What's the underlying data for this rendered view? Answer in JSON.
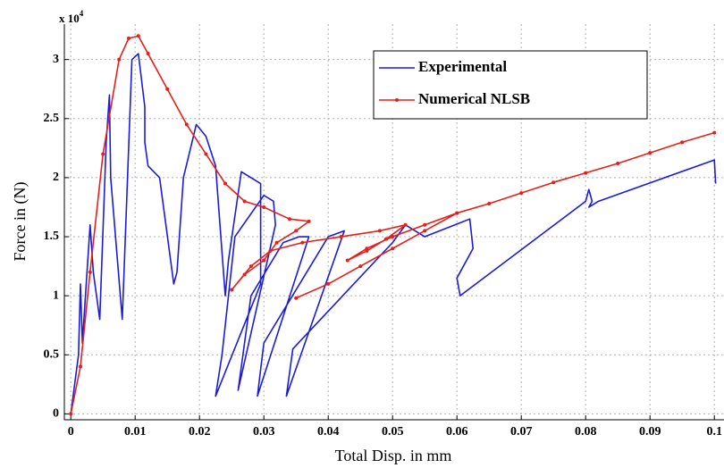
{
  "chart_data": {
    "type": "line",
    "xlabel": "Total Disp. in mm",
    "ylabel": "Force in (N)",
    "y_multiplier": "x 10",
    "y_multiplier_exponent": "4",
    "xlim": [
      -0.001,
      0.1015
    ],
    "ylim": [
      -0.05,
      3.3
    ],
    "xticks": [
      0,
      0.01,
      0.02,
      0.03,
      0.04,
      0.05,
      0.06,
      0.07,
      0.08,
      0.09,
      0.1
    ],
    "yticks": [
      0,
      0.5,
      1,
      1.5,
      2,
      2.5,
      3
    ],
    "grid": true,
    "legend": "upper right",
    "series": [
      {
        "name": "Experimental",
        "color": "#1c1cd8",
        "marker": false,
        "x": [
          0,
          0.0012,
          0.0015,
          0.0018,
          0.003,
          0.0035,
          0.0045,
          0.0055,
          0.006,
          0.0062,
          0.008,
          0.0095,
          0.0105,
          0.0115,
          0.0115,
          0.012,
          0.0138,
          0.016,
          0.0165,
          0.0175,
          0.0195,
          0.021,
          0.0225,
          0.024,
          0.0245,
          0.0265,
          0.0295,
          0.0295,
          0.0225,
          0.0235,
          0.0255,
          0.03,
          0.0315,
          0.0318,
          0.026,
          0.027,
          0.028,
          0.033,
          0.0355,
          0.037,
          0.029,
          0.03,
          0.04,
          0.0425,
          0.0335,
          0.0345,
          0.05,
          0.052,
          0.055,
          0.062,
          0.0625,
          0.06,
          0.0605,
          0.08,
          0.0805,
          0.081,
          0.0805,
          0.082,
          0.1,
          0.1002
        ],
        "values": [
          0,
          0.5,
          1.1,
          0.6,
          1.6,
          1.2,
          0.8,
          2.3,
          2.7,
          2.0,
          0.8,
          3.0,
          3.05,
          2.6,
          2.3,
          2.1,
          2.0,
          1.1,
          1.2,
          2.0,
          2.45,
          2.35,
          2.1,
          1.0,
          1.3,
          2.05,
          1.95,
          1.1,
          0.15,
          0.5,
          1.5,
          1.85,
          1.8,
          1.6,
          0.2,
          0.6,
          1.0,
          1.45,
          1.5,
          1.5,
          0.15,
          0.6,
          1.5,
          1.55,
          0.15,
          0.55,
          1.45,
          1.6,
          1.5,
          1.65,
          1.4,
          1.15,
          1.0,
          1.8,
          1.9,
          1.8,
          1.75,
          1.8,
          2.15,
          1.95
        ]
      },
      {
        "name": "Numerical NLSB",
        "color": "#e3201c",
        "marker": true,
        "x": [
          0,
          0.0015,
          0.003,
          0.005,
          0.0075,
          0.009,
          0.0105,
          0.012,
          0.015,
          0.018,
          0.021,
          0.024,
          0.027,
          0.03,
          0.034,
          0.037,
          0.035,
          0.032,
          0.03,
          0.027,
          0.025,
          0.028,
          0.031,
          0.036,
          0.042,
          0.048,
          0.052,
          0.049,
          0.046,
          0.043,
          0.046,
          0.05,
          0.055,
          0.06,
          0.065,
          0.07,
          0.075,
          0.08,
          0.085,
          0.09,
          0.095,
          0.1,
          null,
          0.035,
          0.04,
          0.045,
          0.05,
          0.055,
          0.06
        ],
        "values": [
          0,
          0.4,
          1.2,
          2.2,
          3.0,
          3.18,
          3.2,
          3.05,
          2.75,
          2.45,
          2.2,
          1.95,
          1.8,
          1.75,
          1.65,
          1.63,
          1.55,
          1.45,
          1.3,
          1.18,
          1.05,
          1.25,
          1.38,
          1.45,
          1.5,
          1.55,
          1.6,
          1.48,
          1.38,
          1.3,
          1.4,
          1.5,
          1.6,
          1.7,
          1.78,
          1.87,
          1.96,
          2.04,
          2.12,
          2.21,
          2.3,
          2.38,
          null,
          0.98,
          1.1,
          1.25,
          1.4,
          1.55,
          1.7
        ]
      }
    ]
  }
}
